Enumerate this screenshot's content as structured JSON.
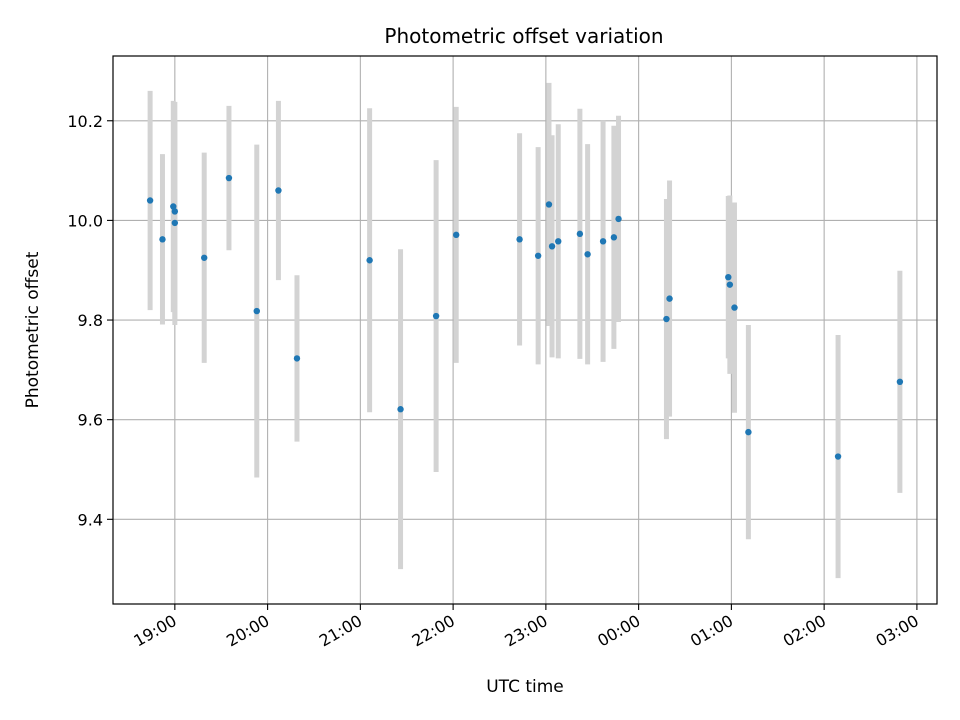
{
  "chart_data": {
    "type": "scatter",
    "title": "Photometric offset variation",
    "xlabel": "UTC time",
    "ylabel": "Photometric offset",
    "x_axis": "time",
    "xlim": [
      "18:20",
      "03:13"
    ],
    "ylim": [
      9.23,
      10.33
    ],
    "x_ticks": [
      "19:00",
      "20:00",
      "21:00",
      "22:00",
      "23:00",
      "00:00",
      "01:00",
      "02:00",
      "03:00"
    ],
    "y_ticks": [
      9.4,
      9.6,
      9.8,
      10.0,
      10.2
    ],
    "y_tick_labels": [
      "9.4",
      "9.6",
      "9.8",
      "10.0",
      "10.2"
    ],
    "grid": true,
    "colors": {
      "points": "#1f77b4",
      "errorbars": "#d3d3d3",
      "grid": "#b0b0b0"
    },
    "series": [
      {
        "x": [
          "18:44",
          "18:52",
          "18:59",
          "19:00",
          "19:00",
          "19:19",
          "19:35",
          "19:53",
          "20:07",
          "20:19",
          "21:06",
          "21:26",
          "21:49",
          "22:02",
          "22:43",
          "22:55",
          "23:02",
          "23:04",
          "23:08",
          "23:22",
          "23:27",
          "23:37",
          "23:44",
          "23:47",
          "00:18",
          "00:20",
          "00:58",
          "00:59",
          "01:02",
          "01:11",
          "02:09",
          "02:49"
        ],
        "y": [
          10.04,
          9.962,
          10.028,
          10.018,
          9.995,
          9.925,
          10.085,
          9.818,
          10.06,
          9.723,
          9.92,
          9.621,
          9.808,
          9.971,
          9.962,
          9.929,
          10.032,
          9.948,
          9.958,
          9.973,
          9.932,
          9.958,
          9.966,
          10.003,
          9.802,
          9.843,
          9.886,
          9.871,
          9.825,
          9.575,
          9.526,
          9.676
        ],
        "yerr": [
          0.22,
          0.171,
          0.212,
          0.22,
          0.205,
          0.211,
          0.145,
          0.334,
          0.18,
          0.167,
          0.305,
          0.321,
          0.313,
          0.257,
          0.213,
          0.218,
          0.244,
          0.223,
          0.235,
          0.251,
          0.221,
          0.242,
          0.224,
          0.207,
          0.241,
          0.237,
          0.163,
          0.179,
          0.211,
          0.215,
          0.244,
          0.223
        ]
      }
    ]
  }
}
